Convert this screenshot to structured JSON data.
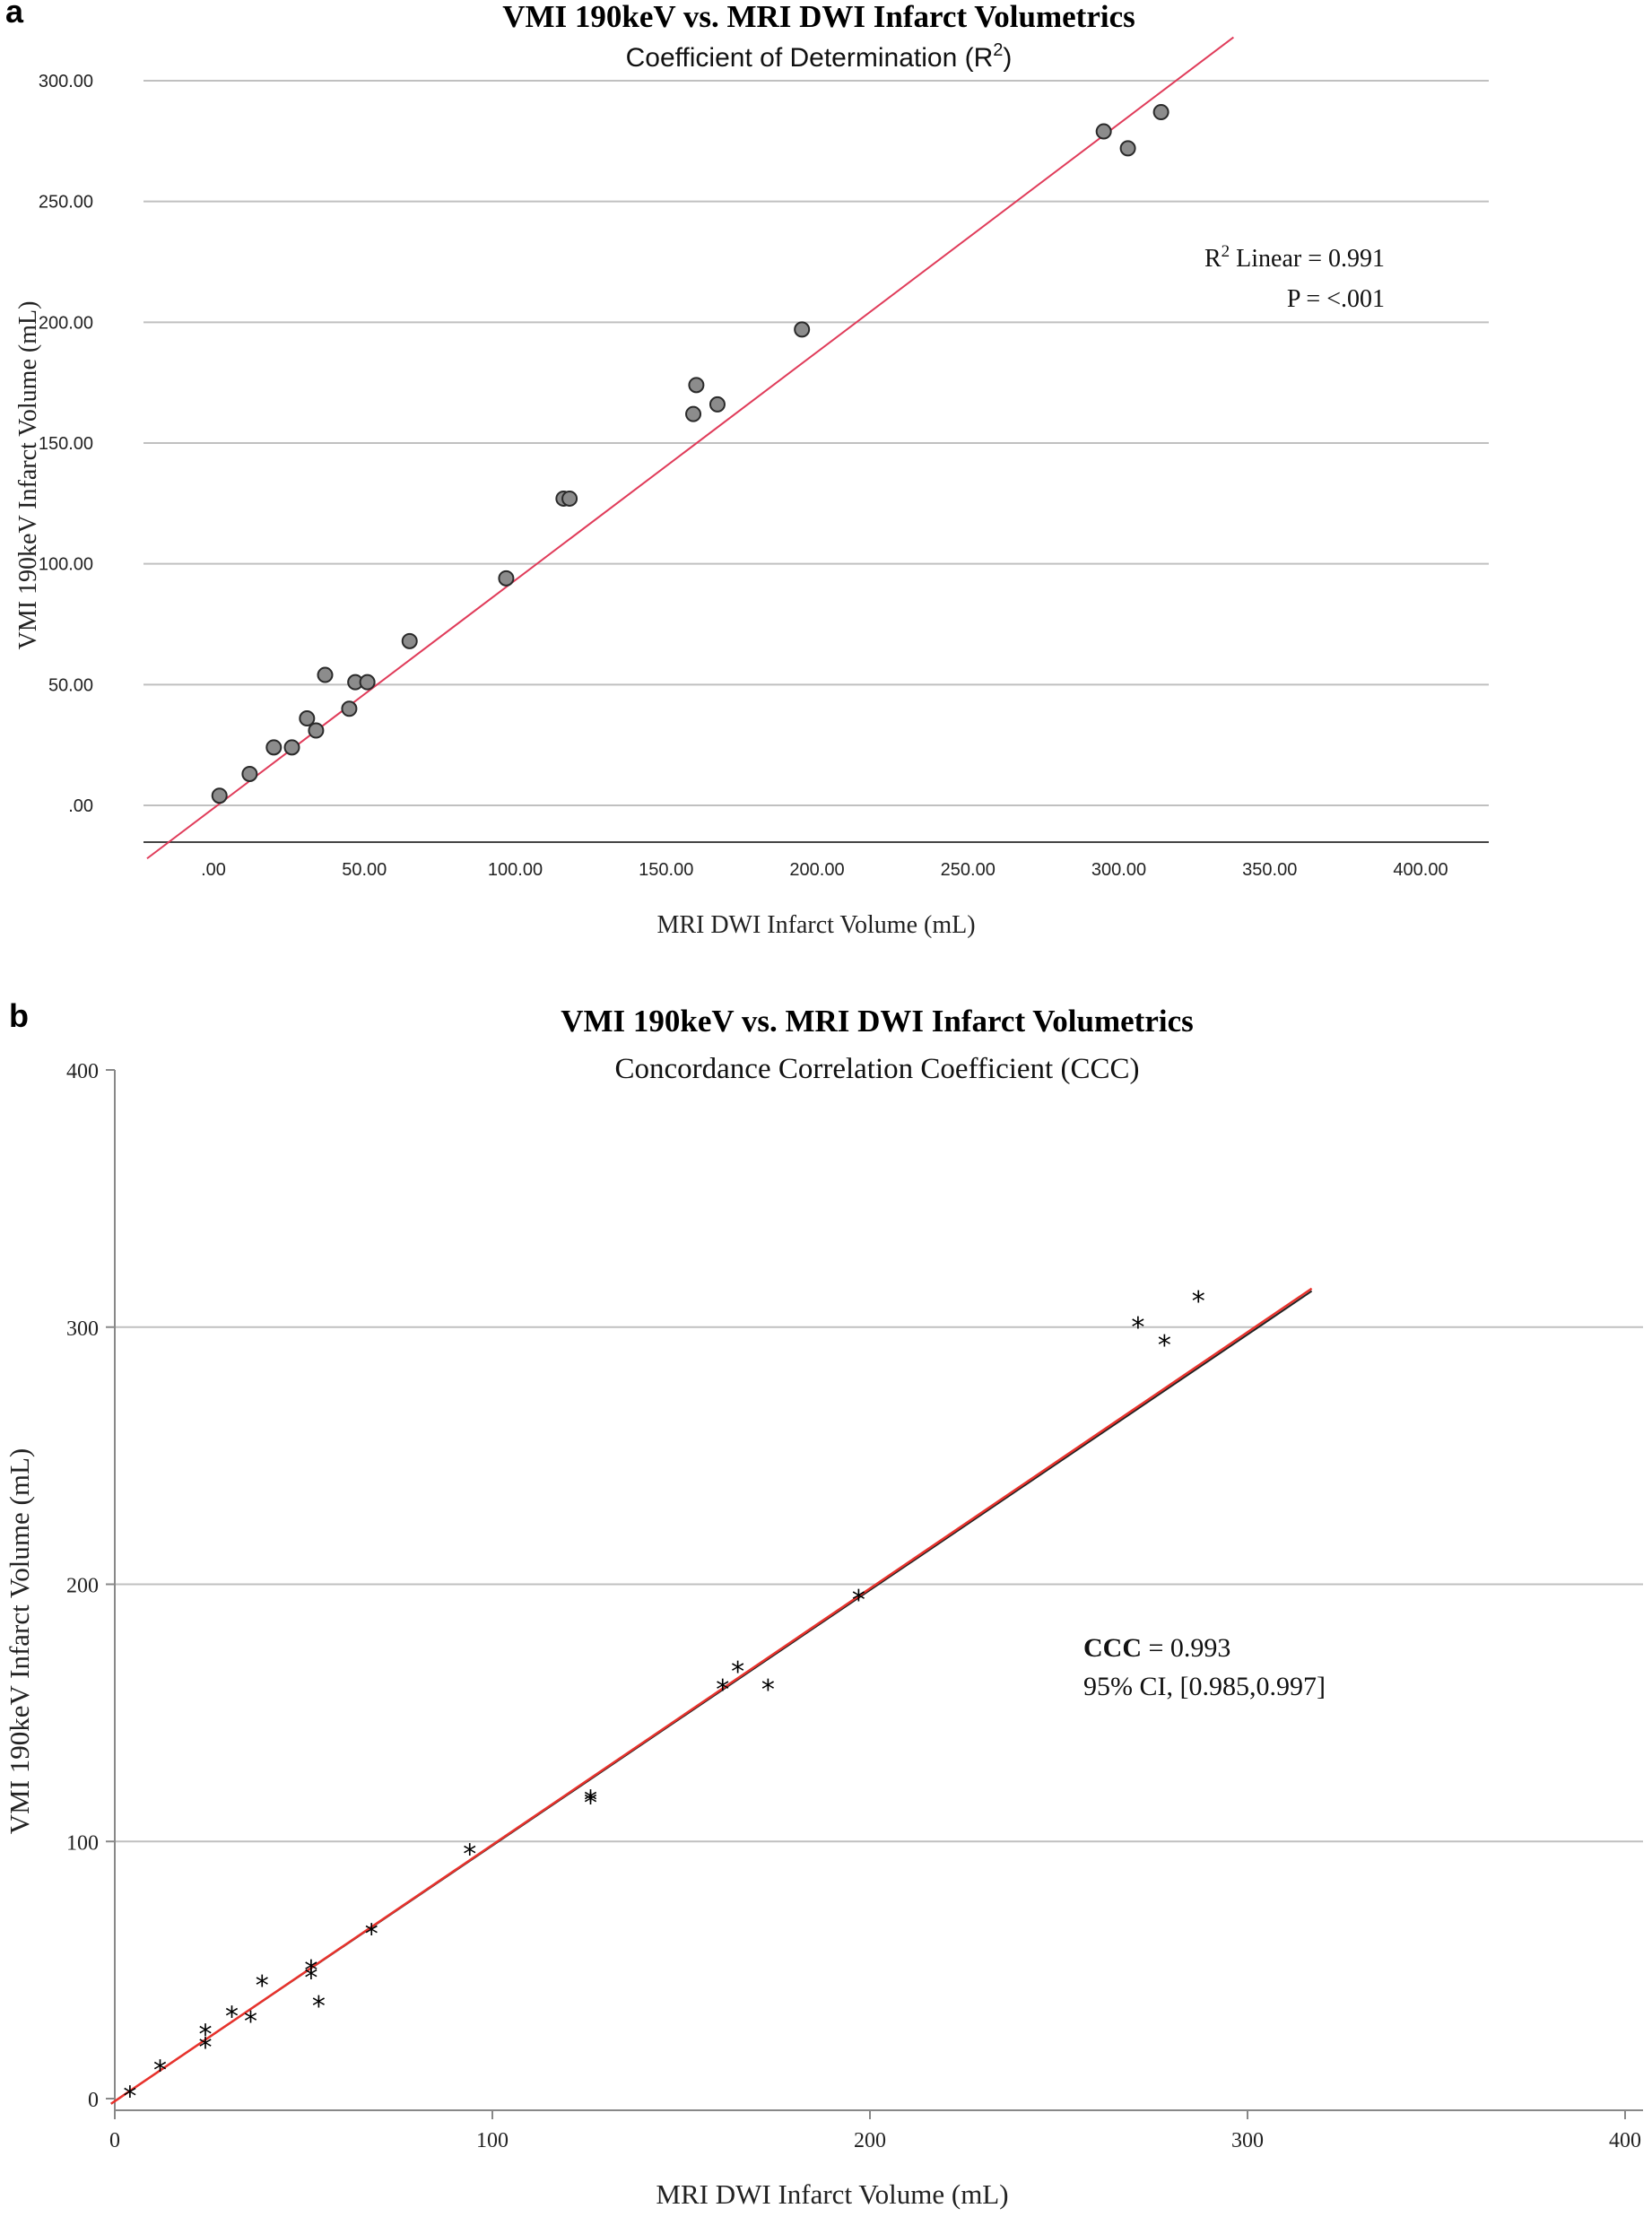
{
  "chart_data": [
    {
      "panel": "a",
      "type": "scatter",
      "title": "VMI 190keV vs. MRI DWI Infarct Volumetrics",
      "subtitle": "Coefficient of Determination (R",
      "subtitle_sup": "2",
      "subtitle_end": ")",
      "xlabel": "MRI DWI Infarct Volume (mL)",
      "ylabel": "VMI 190keV Infarct Volume (mL)",
      "xlim": [
        -22,
        430
      ],
      "ylim": [
        -15,
        318
      ],
      "xticks": [
        0,
        50,
        100,
        150,
        200,
        250,
        300,
        350,
        400
      ],
      "xtick_labels": [
        ".00",
        "50.00",
        "100.00",
        "150.00",
        "200.00",
        "250.00",
        "300.00",
        "350.00",
        "400.00"
      ],
      "yticks": [
        0,
        50,
        100,
        150,
        200,
        250,
        300
      ],
      "ytick_labels": [
        ".00",
        "50.00",
        "100.00",
        "150.00",
        "200.00",
        "250.00",
        "300.00"
      ],
      "grid": "horizontal",
      "points": [
        [
          2,
          4
        ],
        [
          12,
          13
        ],
        [
          20,
          24
        ],
        [
          26,
          24
        ],
        [
          31,
          36
        ],
        [
          34,
          31
        ],
        [
          37,
          54
        ],
        [
          45,
          40
        ],
        [
          47,
          51
        ],
        [
          51,
          51
        ],
        [
          65,
          68
        ],
        [
          97,
          94
        ],
        [
          116,
          127
        ],
        [
          118,
          127
        ],
        [
          159,
          162
        ],
        [
          160,
          174
        ],
        [
          167,
          166
        ],
        [
          195,
          197
        ],
        [
          295,
          279
        ],
        [
          303,
          272
        ],
        [
          314,
          287
        ]
      ],
      "fit_line": [
        [
          -22,
          -22
        ],
        [
          338,
          318
        ]
      ],
      "annotation": {
        "r2_prefix": "R",
        "r2_sup": "2",
        "r2_text": " Linear = 0.991",
        "p_text": "P = <.001"
      },
      "colors": {
        "point_fill": "#8c8c8c",
        "point_edge": "#2a2a2a",
        "fit_line": "#e03c5a",
        "grid": "#c0c0c0"
      }
    },
    {
      "panel": "b",
      "type": "scatter",
      "title": "VMI 190keV vs. MRI DWI Infarct Volumetrics",
      "subtitle": "Concordance Correlation Coefficient (CCC)",
      "xlabel": "MRI DWI Infarct Volume (mL)",
      "ylabel": "VMI 190keV Infarct Volume (mL)",
      "xlim": [
        0,
        400
      ],
      "ylim": [
        0,
        400
      ],
      "xticks": [
        0,
        100,
        200,
        300,
        400
      ],
      "xtick_labels": [
        "0",
        "100",
        "200",
        "300",
        "400"
      ],
      "yticks": [
        0,
        100,
        200,
        300,
        400
      ],
      "ytick_labels": [
        "0",
        "100",
        "200",
        "300",
        "400"
      ],
      "grid": "horizontal",
      "marker": "*",
      "points": [
        [
          4,
          2
        ],
        [
          12,
          12
        ],
        [
          24,
          21
        ],
        [
          24,
          26
        ],
        [
          31,
          33
        ],
        [
          36,
          31
        ],
        [
          39,
          45
        ],
        [
          52,
          48
        ],
        [
          52,
          51
        ],
        [
          54,
          37
        ],
        [
          68,
          65
        ],
        [
          94,
          96
        ],
        [
          126,
          116
        ],
        [
          126,
          117
        ],
        [
          161,
          160
        ],
        [
          165,
          167
        ],
        [
          173,
          160
        ],
        [
          197,
          195
        ],
        [
          271,
          301
        ],
        [
          278,
          294
        ],
        [
          287,
          311
        ]
      ],
      "fit_line": [
        [
          -1,
          -2
        ],
        [
          317,
          315
        ]
      ],
      "identity_line": [
        [
          -1,
          -2
        ],
        [
          317,
          314
        ]
      ],
      "annotation": {
        "ccc_label": "CCC",
        "ccc_value": " = 0.993",
        "ci_text": "95% CI, [0.985,0.997]"
      },
      "colors": {
        "marker": "#000000",
        "fit_line": "#e8322c",
        "identity_line": "#222222",
        "grid": "#c0c0c0",
        "axis": "#888888"
      }
    }
  ]
}
